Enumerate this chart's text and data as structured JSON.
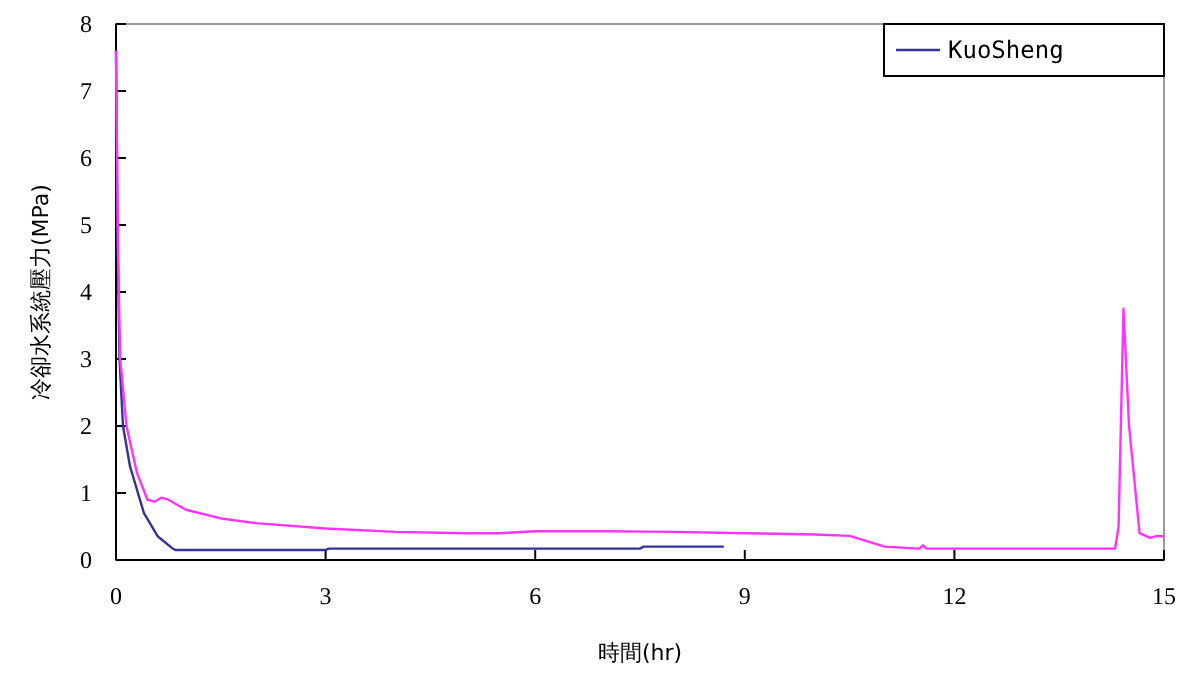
{
  "chart_data": {
    "type": "line",
    "xlabel": "時間(hr)",
    "ylabel": "冷卻水系統壓力(MPa)",
    "xlim": [
      0,
      15
    ],
    "xticks": [
      0,
      3,
      6,
      9,
      12,
      15
    ],
    "ylim": [
      0,
      8
    ],
    "yticks": [
      0,
      1,
      2,
      3,
      4,
      5,
      6,
      7,
      8
    ],
    "grid": false,
    "legend": "top right",
    "marker": "none",
    "line_style": "solid",
    "series": [
      {
        "name": "KuoSheng",
        "color": "#333399",
        "x": [
          0,
          0.02,
          0.05,
          0.1,
          0.2,
          0.4,
          0.6,
          0.8,
          0.85,
          3,
          3.05,
          7.5,
          7.55,
          8.7
        ],
        "values": [
          7.6,
          5,
          3,
          2,
          1.4,
          0.7,
          0.35,
          0.18,
          0.15,
          0.15,
          0.17,
          0.17,
          0.2,
          0.2
        ]
      },
      {
        "color": "#ff33ff",
        "x": [
          0,
          0.03,
          0.06,
          0.15,
          0.3,
          0.45,
          0.55,
          0.65,
          0.75,
          1,
          1.5,
          2,
          3,
          4,
          5,
          5.5,
          6,
          7,
          8,
          9,
          10,
          10.5,
          11,
          11.5,
          11.55,
          11.6,
          13,
          14.3,
          14.35,
          14.42,
          14.5,
          14.65,
          14.8,
          14.9,
          15
        ],
        "values": [
          7.6,
          4.5,
          3,
          2,
          1.3,
          0.9,
          0.87,
          0.93,
          0.9,
          0.75,
          0.62,
          0.55,
          0.47,
          0.42,
          0.4,
          0.4,
          0.43,
          0.43,
          0.42,
          0.4,
          0.38,
          0.36,
          0.2,
          0.17,
          0.22,
          0.17,
          0.17,
          0.17,
          0.5,
          3.75,
          2,
          0.4,
          0.33,
          0.36,
          0.35
        ]
      }
    ]
  }
}
